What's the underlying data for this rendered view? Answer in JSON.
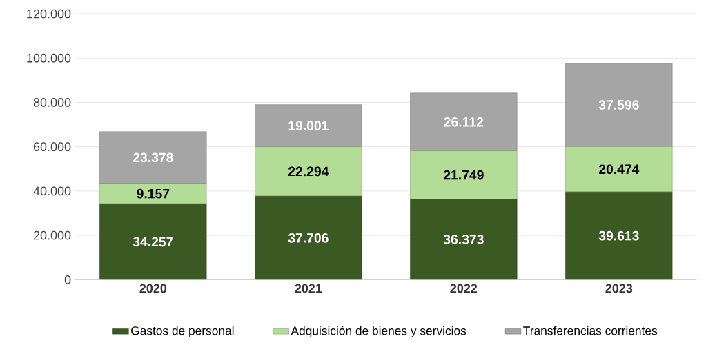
{
  "chart_data": {
    "type": "bar",
    "stacked": true,
    "categories": [
      "2020",
      "2021",
      "2022",
      "2023"
    ],
    "series": [
      {
        "name": "Gastos de personal",
        "color": "#3b5a23",
        "values": [
          34257,
          37706,
          36373,
          39613
        ],
        "value_labels": [
          "34.257",
          "37.706",
          "36.373",
          "39.613"
        ]
      },
      {
        "name": "Adquisición de bienes y servicios",
        "color": "#b3dd96",
        "values": [
          9157,
          22294,
          21749,
          20474
        ],
        "value_labels": [
          "9.157",
          "22.294",
          "21.749",
          "20.474"
        ]
      },
      {
        "name": "Transferencias corrientes",
        "color": "#a5a5a5",
        "values": [
          23378,
          19001,
          26112,
          37596
        ],
        "value_labels": [
          "23.378",
          "19.001",
          "26.112",
          "37.596"
        ]
      }
    ],
    "ylim": [
      0,
      120000
    ],
    "yticks": [
      {
        "value": 0,
        "label": "0"
      },
      {
        "value": 20000,
        "label": "20.000"
      },
      {
        "value": 40000,
        "label": "40.000"
      },
      {
        "value": 60000,
        "label": "60.000"
      },
      {
        "value": 80000,
        "label": "80.000"
      },
      {
        "value": 100000,
        "label": "100.000"
      },
      {
        "value": 120000,
        "label": "120.000"
      }
    ],
    "grid": "y",
    "legend": "bottom"
  }
}
